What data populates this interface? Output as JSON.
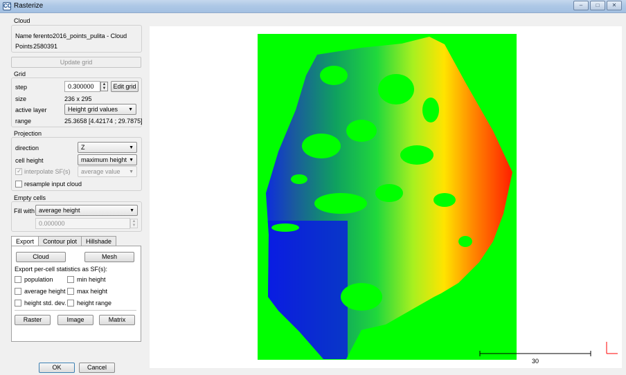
{
  "window": {
    "title": "Rasterize",
    "app_icon": "CC"
  },
  "cloud": {
    "group_title": "Cloud",
    "name_label": "Name",
    "name_value": "ferento2016_points_pulita - Cloud",
    "points_label": "Points",
    "points_value": "2580391"
  },
  "update_grid_label": "Update grid",
  "grid": {
    "group_title": "Grid",
    "step_label": "step",
    "step_value": "0.300000",
    "edit_grid_label": "Edit grid",
    "size_label": "size",
    "size_value": "236 x 295",
    "active_layer_label": "active layer",
    "active_layer_value": "Height grid values",
    "range_label": "range",
    "range_value": "25.3658 [4.42174 ; 29.7875]"
  },
  "projection": {
    "group_title": "Projection",
    "direction_label": "direction",
    "direction_value": "Z",
    "cell_height_label": "cell height",
    "cell_height_value": "maximum height",
    "interpolate_label": "interpolate SF(s)",
    "interpolate_value": "average value",
    "resample_label": "resample input cloud"
  },
  "empty_cells": {
    "group_title": "Empty cells",
    "fill_label": "Fill with",
    "fill_value": "average height",
    "fill_number": "0.000000"
  },
  "tabs": [
    "Export",
    "Contour plot",
    "Hillshade"
  ],
  "export": {
    "cloud_label": "Cloud",
    "mesh_label": "Mesh",
    "stats_label": "Export per-cell statistics as SF(s):",
    "population_label": "population",
    "min_height_label": "min height",
    "average_height_label": "average height",
    "max_height_label": "max height",
    "height_std_label": "height std. dev.",
    "height_range_label": "height range",
    "raster_label": "Raster",
    "image_label": "Image",
    "matrix_label": "Matrix"
  },
  "ok_label": "OK",
  "cancel_label": "Cancel",
  "scale_label": "30",
  "colors": {
    "empty_cell_green": "#00ff00",
    "accent_red": "#ff2200"
  }
}
